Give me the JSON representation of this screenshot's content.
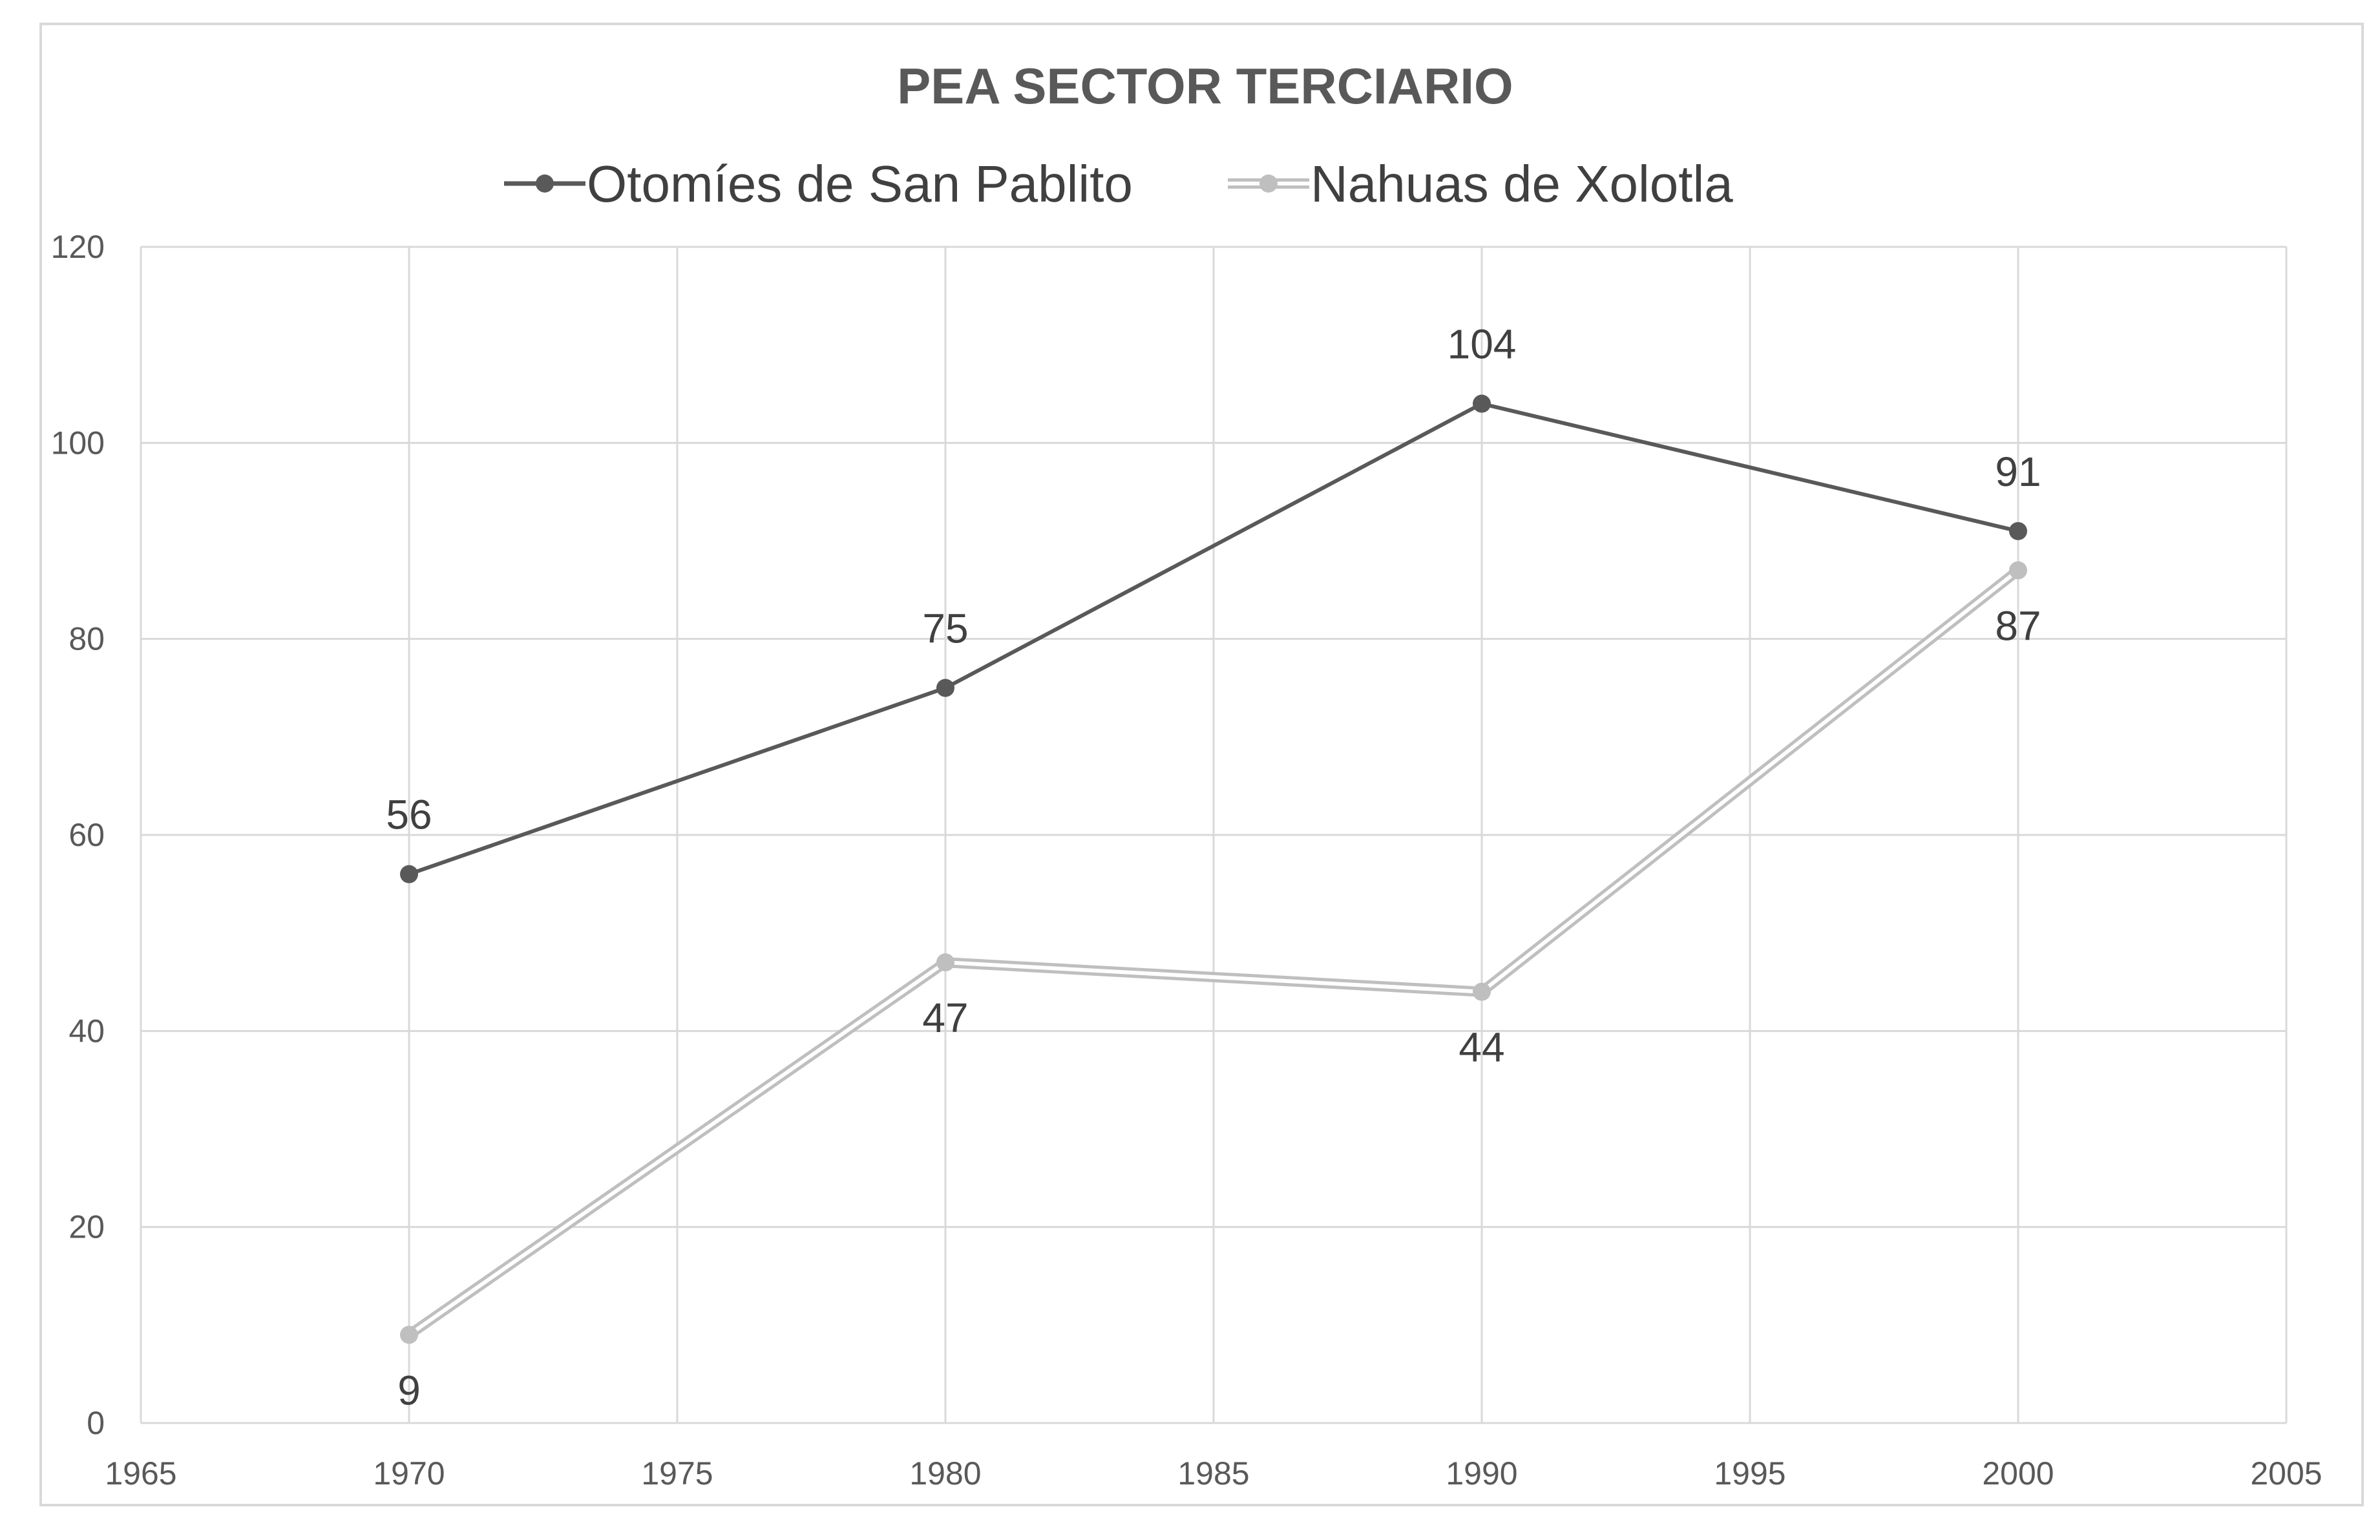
{
  "chart_data": {
    "type": "line",
    "title": "PEA SECTOR TERCIARIO",
    "xlabel": "",
    "ylabel": "",
    "xlim": [
      1965,
      2005
    ],
    "ylim": [
      0,
      120
    ],
    "x_ticks": [
      1965,
      1970,
      1975,
      1980,
      1985,
      1990,
      1995,
      2000,
      2005
    ],
    "y_ticks": [
      0,
      20,
      40,
      60,
      80,
      100,
      120
    ],
    "grid": true,
    "legend_position": "top-center",
    "x": [
      1970,
      1980,
      1990,
      2000
    ],
    "series": [
      {
        "name": "Otomíes de San Pablito",
        "values": [
          56,
          75,
          104,
          91
        ],
        "labels": [
          "56",
          "75",
          "104",
          "91"
        ],
        "label_position": "above",
        "color": "#595959",
        "style": "solid"
      },
      {
        "name": "Nahuas de Xolotla",
        "values": [
          9,
          47,
          44,
          87
        ],
        "labels": [
          "9",
          "47",
          "44",
          "87"
        ],
        "label_position": "below",
        "color": "#bfbfbf",
        "style": "double"
      }
    ]
  }
}
